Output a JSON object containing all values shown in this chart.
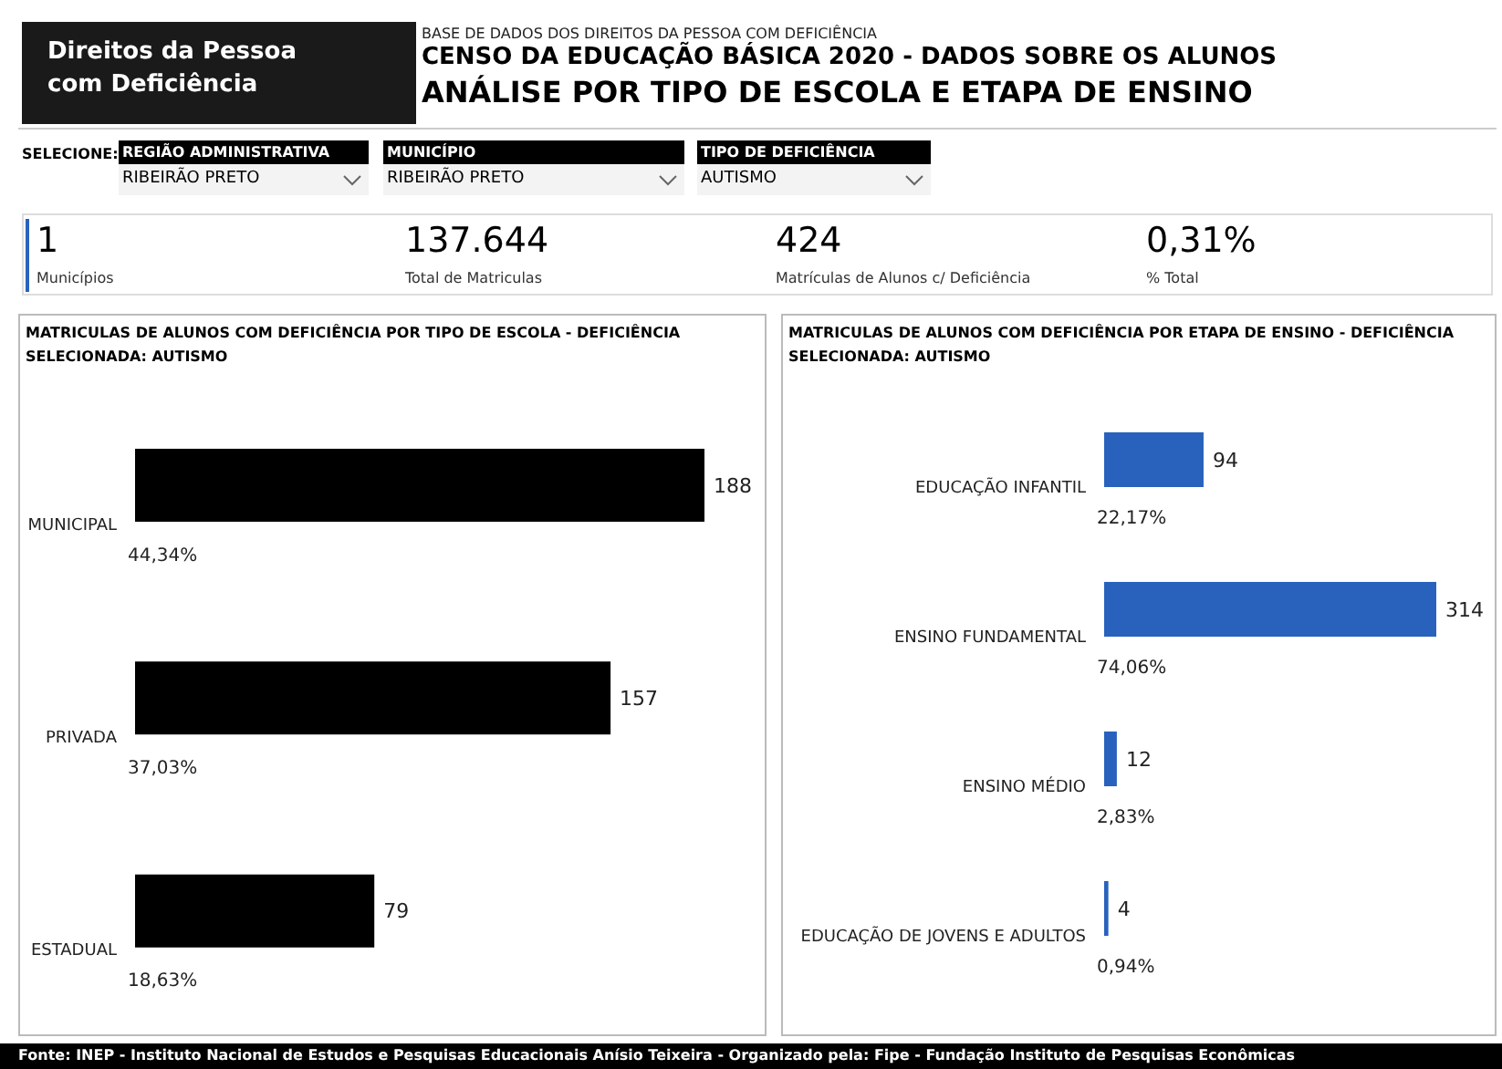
{
  "chart_data": [
    {
      "type": "other",
      "title": "CENSO DA EDUCAÇÃO BÁSICA 2020 - DADOS SOBRE OS ALUNOS",
      "subtitle": "ANÁLISE POR TIPO DE ESCOLA E ETAPA DE ENSINO",
      "annotations": [
        "Direitos da Pessoa com Deficiência",
        "BASE DE DADOS DOS DIREITOS DA PESSOA COM DEFICIÊNCIA",
        "SELECIONE:",
        "REGIÃO ADMINISTRATIVA",
        "RIBEIRÃO PRETO",
        "MUNICÍPIO",
        "RIBEIRÃO PRETO",
        "TIPO DE DEFICIÊNCIA",
        "AUTISMO",
        "1",
        "Municípios",
        "137.644",
        "Total de Matriculas",
        "424",
        "Matrículas de Alunos c/ Deficiência",
        "0,31%",
        "% Total",
        "Fonte: INEP - Instituto Nacional de Estudos e Pesquisas Educacionais Anísio Teixeira -  Organizado pela: Fipe - Fundação Instituto de Pesquisas Econômicas"
      ]
    },
    {
      "type": "bar",
      "orientation": "horizontal",
      "title": "MATRICULAS DE ALUNOS COM DEFICIÊNCIA POR TIPO DE ESCOLA - DEFICIÊNCIA SELECIONADA: AUTISMO",
      "categories": [
        "MUNICIPAL",
        "PRIVADA",
        "ESTADUAL"
      ],
      "values": [
        188,
        157,
        79
      ],
      "color": "#000000",
      "data_labels": true,
      "tick_labels": "y",
      "annotations": [
        "44,34%",
        "37,03%",
        "18,63%"
      ]
    },
    {
      "type": "bar",
      "orientation": "horizontal",
      "title": "MATRICULAS DE ALUNOS COM DEFICIÊNCIA POR ETAPA DE ENSINO - DEFICIÊNCIA SELECIONADA: AUTISMO",
      "categories": [
        "EDUCAÇÃO INFANTIL",
        "ENSINO FUNDAMENTAL",
        "ENSINO MÉDIO",
        "EDUCAÇÃO DE JOVENS E ADULTOS"
      ],
      "values": [
        94,
        314,
        12,
        4
      ],
      "color": "#2862bd",
      "data_labels": true,
      "tick_labels": "y",
      "annotations": [
        "22,17%",
        "74,06%",
        "2,83%",
        "0,94%"
      ]
    }
  ]
}
